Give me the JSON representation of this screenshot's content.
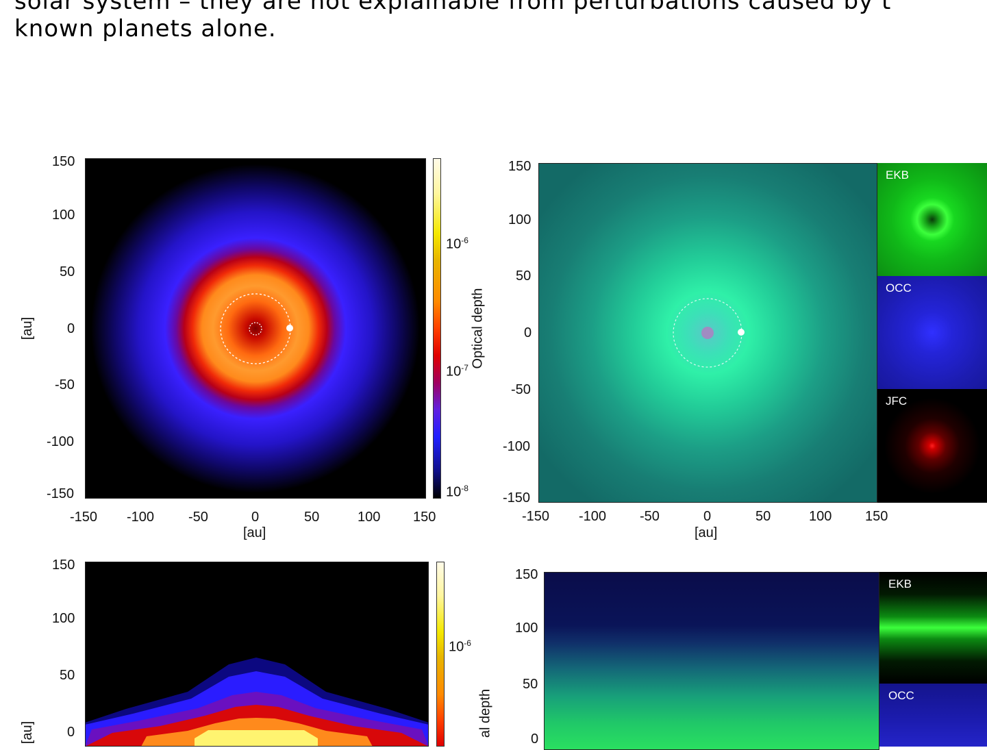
{
  "text": {
    "line1": "solar system – they are not explainable from perturbations caused by t",
    "line2": "known planets alone."
  },
  "axes": {
    "ticks_y": [
      "150",
      "100",
      "50",
      "0",
      "-50",
      "-100",
      "-150"
    ],
    "ticks_x": [
      "-150",
      "-100",
      "-50",
      "0",
      "50",
      "100",
      "150"
    ],
    "unit_label": "[au]"
  },
  "colorbar": {
    "label": "Optical depth",
    "label_partial": "al depth",
    "ticks": [
      {
        "base": "10",
        "exp": "-6"
      },
      {
        "base": "10",
        "exp": "-7"
      },
      {
        "base": "10",
        "exp": "-8"
      }
    ]
  },
  "subpanels": {
    "top": [
      "EKB",
      "OCC",
      "JFC"
    ],
    "bottom": [
      "EKB",
      "OCC"
    ]
  },
  "colors": {
    "dust_disk_core": "#ff9a2e",
    "dust_disk_ring": "#e01b08",
    "dust_disk_halo": "#2a1cff",
    "composite_bg": "#1a7a70",
    "composite_glow": "#2ff0a8",
    "ekb": "#16e020",
    "occ": "#2222c8",
    "jfc": "#e00000"
  }
}
